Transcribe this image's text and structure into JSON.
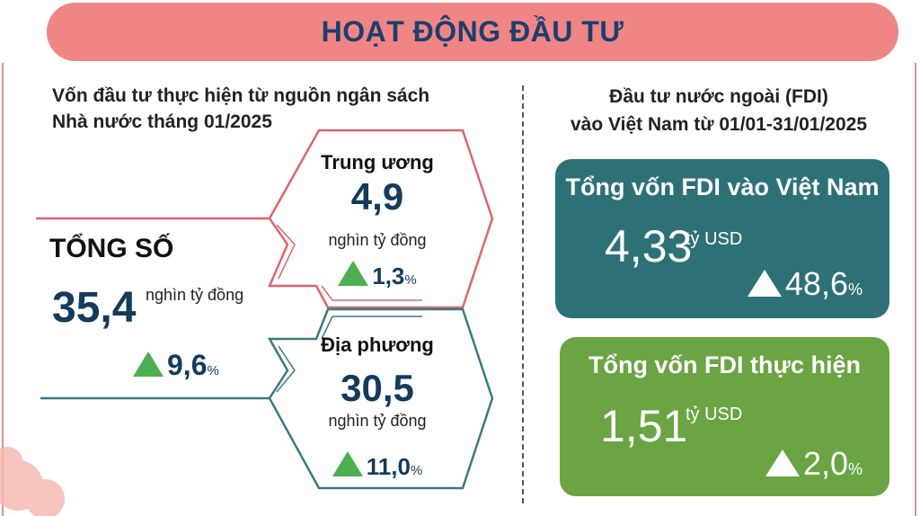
{
  "header": {
    "title": "HOẠT ĐỘNG ĐẦU TƯ"
  },
  "left": {
    "heading_line1": "Vốn đầu tư thực hiện từ nguồn ngân sách",
    "heading_line2": "Nhà nước tháng 01/2025",
    "total": {
      "label": "TỔNG SỐ",
      "value": "35,4",
      "unit": "nghìn tỷ đồng",
      "change": "9,6",
      "pct": "%"
    },
    "central": {
      "label": "Trung ương",
      "value": "4,9",
      "unit": "nghìn tỷ đồng",
      "change": "1,3",
      "pct": "%"
    },
    "local": {
      "label": "Địa phương",
      "value": "30,5",
      "unit": "nghìn tỷ đồng",
      "change": "11,0",
      "pct": "%"
    }
  },
  "right": {
    "heading_line1": "Đầu tư nước ngoài (FDI)",
    "heading_line2": "vào Việt Nam từ 01/01-31/01/2025",
    "fdi_total": {
      "title": "Tổng vốn FDI vào Việt Nam",
      "value": "4,33",
      "unit": "tỷ USD",
      "change": "48,6",
      "pct": "%"
    },
    "fdi_disbursed": {
      "title": "Tổng vốn FDI thực hiện",
      "value": "1,51",
      "unit": "tỷ USD",
      "change": "2,0",
      "pct": "%"
    }
  },
  "colors": {
    "header": "#f08585",
    "pink_line": "#dd6470",
    "teal_line": "#3a7a80",
    "teal_box": "#2d7177",
    "green_box": "#6aa443",
    "up_arrow": "#4caf50",
    "number": "#143a5c"
  },
  "icons": {
    "increase": "triangle-up-icon",
    "decoration": "flower-icon"
  }
}
